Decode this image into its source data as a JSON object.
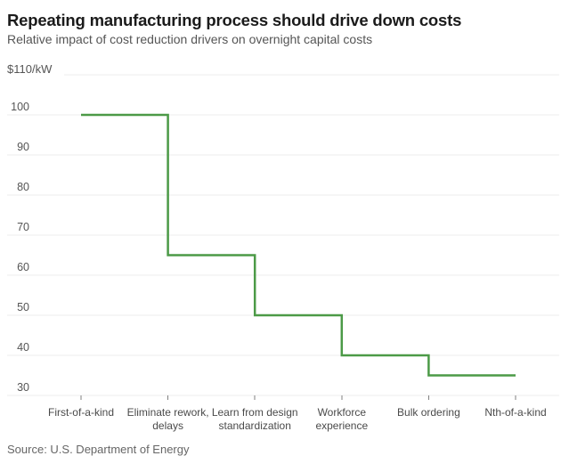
{
  "header": {
    "title": "Repeating manufacturing process should drive down costs",
    "subtitle": "Relative impact of cost reduction drivers on overnight capital costs"
  },
  "chart_data": {
    "type": "line",
    "subtype": "step",
    "title": "Repeating manufacturing process should drive down costs",
    "subtitle": "Relative impact of cost reduction drivers on overnight capital costs",
    "unit_label": "$110/kW",
    "categories": [
      "First-of-a-kind",
      "Eliminate rework, delays",
      "Learn from design standardization",
      "Workforce experience",
      "Bulk ordering",
      "Nth-of-a-kind"
    ],
    "category_label_lines": [
      [
        "First-of-a-kind"
      ],
      [
        "Eliminate rework,",
        "delays"
      ],
      [
        "Learn from design",
        "standardization"
      ],
      [
        "Workforce",
        "experience"
      ],
      [
        "Bulk ordering"
      ],
      [
        "Nth-of-a-kind"
      ]
    ],
    "values": [
      100,
      65,
      50,
      40,
      35,
      35
    ],
    "xlabel": "",
    "ylabel": "",
    "ylim": [
      30,
      110
    ],
    "y_ticks": [
      30,
      40,
      50,
      60,
      70,
      80,
      90,
      100
    ],
    "y_top_value": 110,
    "grid": "horizontal",
    "legend": "none",
    "line_color": "#4c9a47",
    "grid_color": "#eeeeee",
    "tick_color": "#808080",
    "axis_label_color": "#555555",
    "category_label_color": "#4a4a4a"
  },
  "footer": {
    "source": "Source: U.S. Department of Energy"
  }
}
